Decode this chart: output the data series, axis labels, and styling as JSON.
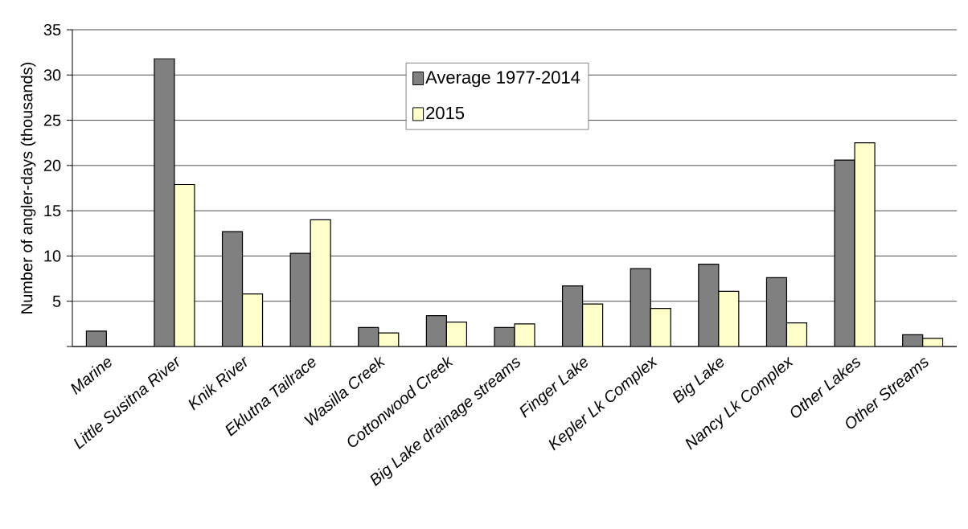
{
  "chart_data": {
    "type": "bar",
    "ylabel": "Number of angler-days (thousands)",
    "categories": [
      "Marine",
      "Little Susitna River",
      "Knik River",
      "Eklutna Tailrace",
      "Wasilla Creek",
      "Cottonwood Creek",
      "Big Lake drainage streams",
      "Finger Lake",
      "Kepler Lk Complex",
      "Big Lake",
      "Nancy Lk Complex",
      "Other Lakes",
      "Other Streams"
    ],
    "series": [
      {
        "name": "Average 1977-2014",
        "color": "#808080",
        "values": [
          1.7,
          31.8,
          12.7,
          10.3,
          2.1,
          3.4,
          2.1,
          6.7,
          8.6,
          9.1,
          7.6,
          20.6,
          1.3
        ]
      },
      {
        "name": "2015",
        "color": "#ffffcc",
        "values": [
          null,
          17.9,
          5.8,
          14.0,
          1.5,
          2.7,
          2.5,
          4.7,
          4.2,
          6.1,
          2.6,
          22.5,
          0.9
        ]
      }
    ],
    "ylim": [
      0,
      35
    ],
    "yticks": [
      {
        "value": 0,
        "label": null
      },
      5,
      10,
      15,
      20,
      25,
      30,
      35
    ],
    "grid": "y",
    "legend": "top"
  }
}
